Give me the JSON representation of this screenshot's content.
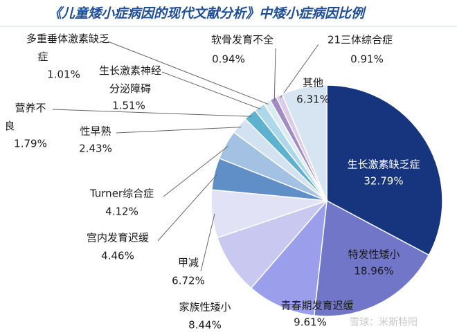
{
  "chart_data": {
    "type": "pie",
    "title": "《儿童矮小症病因的现代文献分析》中矮小症病因比例",
    "categories": [
      "生长激素缺乏症",
      "特发性矮小",
      "青春期发育迟缓",
      "家族性矮小",
      "甲减",
      "宫内发育迟缓",
      "Turner综合症",
      "性早熟",
      "营养不良",
      "生长激素神经分泌障碍",
      "多重垂体激素缺乏症",
      "软骨发育不全",
      "21三体综合症",
      "其他"
    ],
    "values": [
      32.79,
      18.96,
      9.61,
      8.44,
      6.72,
      4.46,
      4.12,
      2.43,
      1.79,
      1.51,
      1.01,
      0.94,
      0.91,
      6.31
    ],
    "value_labels": [
      "32.79%",
      "18.96%",
      "9.61%",
      "8.44%",
      "6.72%",
      "4.46%",
      "4.12%",
      "2.43%",
      "1.79%",
      "1.51%",
      "1.01%",
      "0.94%",
      "0.91%",
      "6.31%"
    ],
    "colors": [
      "#17357f",
      "#7176c9",
      "#9b9eea",
      "#c9c8f0",
      "#e2e2f7",
      "#5f8fc6",
      "#a3c2e3",
      "#d3e2f1",
      "#5fb1d0",
      "#acd8ea",
      "#dcecf5",
      "#a08bc5",
      "#dccbe9",
      "#d7e4f1"
    ],
    "watermark": "雪球：米斯特阳"
  }
}
